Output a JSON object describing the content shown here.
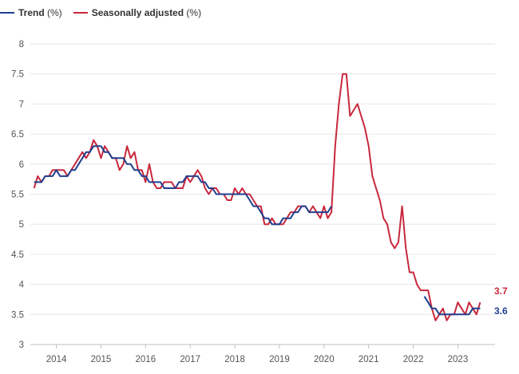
{
  "legend": [
    {
      "name": "Trend",
      "unit": "(%)",
      "color": "#1f3f8f"
    },
    {
      "name": "Seasonally adjusted",
      "unit": "(%)",
      "color": "#c8283c"
    }
  ],
  "chart_data": {
    "type": "line",
    "title": "",
    "xlabel": "",
    "ylabel": "",
    "ylim": [
      3,
      8
    ],
    "y_ticks": [
      3,
      3.5,
      4,
      4.5,
      5,
      5.5,
      6,
      6.5,
      7,
      7.5,
      8
    ],
    "y_tick_labels": [
      "3",
      "3.5",
      "4",
      "4.5",
      "5",
      "5.5",
      "6",
      "6.5",
      "7",
      "7.5",
      "8"
    ],
    "xlim": [
      "2013-06",
      "2023-11"
    ],
    "x_ticks": [
      "2014-01",
      "2015-01",
      "2016-01",
      "2017-01",
      "2018-01",
      "2019-01",
      "2020-01",
      "2021-01",
      "2022-01",
      "2023-01"
    ],
    "x_tick_labels": [
      "2014",
      "2015",
      "2016",
      "2017",
      "2018",
      "2019",
      "2020",
      "2021",
      "2022",
      "2023"
    ],
    "grid": "horizontal",
    "legend_position": "top-left",
    "series": [
      {
        "name": "Trend (%)",
        "color": "#1f3f8f",
        "segments": [
          [
            [
              "2013-07",
              5.7
            ],
            [
              "2013-08",
              5.7
            ],
            [
              "2013-09",
              5.7
            ],
            [
              "2013-10",
              5.8
            ],
            [
              "2013-11",
              5.8
            ],
            [
              "2013-12",
              5.8
            ],
            [
              "2014-01",
              5.9
            ],
            [
              "2014-02",
              5.8
            ],
            [
              "2014-03",
              5.8
            ],
            [
              "2014-04",
              5.8
            ],
            [
              "2014-05",
              5.9
            ],
            [
              "2014-06",
              5.9
            ],
            [
              "2014-07",
              6.0
            ],
            [
              "2014-08",
              6.1
            ],
            [
              "2014-09",
              6.2
            ],
            [
              "2014-10",
              6.2
            ],
            [
              "2014-11",
              6.3
            ],
            [
              "2014-12",
              6.3
            ],
            [
              "2015-01",
              6.3
            ],
            [
              "2015-02",
              6.2
            ],
            [
              "2015-03",
              6.2
            ],
            [
              "2015-04",
              6.1
            ],
            [
              "2015-05",
              6.1
            ],
            [
              "2015-06",
              6.1
            ],
            [
              "2015-07",
              6.1
            ],
            [
              "2015-08",
              6.0
            ],
            [
              "2015-09",
              6.0
            ],
            [
              "2015-10",
              5.9
            ],
            [
              "2015-11",
              5.9
            ],
            [
              "2015-12",
              5.8
            ],
            [
              "2016-01",
              5.8
            ],
            [
              "2016-02",
              5.7
            ],
            [
              "2016-03",
              5.7
            ],
            [
              "2016-04",
              5.7
            ],
            [
              "2016-05",
              5.7
            ],
            [
              "2016-06",
              5.6
            ],
            [
              "2016-07",
              5.6
            ],
            [
              "2016-08",
              5.6
            ],
            [
              "2016-09",
              5.6
            ],
            [
              "2016-10",
              5.7
            ],
            [
              "2016-11",
              5.7
            ],
            [
              "2016-12",
              5.8
            ],
            [
              "2017-01",
              5.8
            ],
            [
              "2017-02",
              5.8
            ],
            [
              "2017-03",
              5.8
            ],
            [
              "2017-04",
              5.7
            ],
            [
              "2017-05",
              5.7
            ],
            [
              "2017-06",
              5.6
            ],
            [
              "2017-07",
              5.6
            ],
            [
              "2017-08",
              5.5
            ],
            [
              "2017-09",
              5.5
            ],
            [
              "2017-10",
              5.5
            ],
            [
              "2017-11",
              5.5
            ],
            [
              "2017-12",
              5.5
            ],
            [
              "2018-01",
              5.5
            ],
            [
              "2018-02",
              5.5
            ],
            [
              "2018-03",
              5.5
            ],
            [
              "2018-04",
              5.5
            ],
            [
              "2018-05",
              5.4
            ],
            [
              "2018-06",
              5.3
            ],
            [
              "2018-07",
              5.3
            ],
            [
              "2018-08",
              5.2
            ],
            [
              "2018-09",
              5.1
            ],
            [
              "2018-10",
              5.1
            ],
            [
              "2018-11",
              5.0
            ],
            [
              "2018-12",
              5.0
            ],
            [
              "2019-01",
              5.0
            ],
            [
              "2019-02",
              5.1
            ],
            [
              "2019-03",
              5.1
            ],
            [
              "2019-04",
              5.1
            ],
            [
              "2019-05",
              5.2
            ],
            [
              "2019-06",
              5.2
            ],
            [
              "2019-07",
              5.3
            ],
            [
              "2019-08",
              5.3
            ],
            [
              "2019-09",
              5.2
            ],
            [
              "2019-10",
              5.2
            ],
            [
              "2019-11",
              5.2
            ],
            [
              "2019-12",
              5.2
            ],
            [
              "2020-01",
              5.2
            ],
            [
              "2020-02",
              5.2
            ],
            [
              "2020-03",
              5.3
            ]
          ],
          [
            [
              "2022-04",
              3.8
            ],
            [
              "2022-05",
              3.7
            ],
            [
              "2022-06",
              3.6
            ],
            [
              "2022-07",
              3.6
            ],
            [
              "2022-08",
              3.5
            ],
            [
              "2022-09",
              3.5
            ],
            [
              "2022-10",
              3.5
            ],
            [
              "2022-11",
              3.5
            ],
            [
              "2022-12",
              3.5
            ],
            [
              "2023-01",
              3.5
            ],
            [
              "2023-02",
              3.5
            ],
            [
              "2023-03",
              3.5
            ],
            [
              "2023-04",
              3.5
            ],
            [
              "2023-05",
              3.6
            ],
            [
              "2023-06",
              3.6
            ],
            [
              "2023-07",
              3.6
            ]
          ]
        ],
        "last_value_label": "3.6"
      },
      {
        "name": "Seasonally adjusted (%)",
        "color": "#c8283c",
        "segments": [
          [
            [
              "2013-07",
              5.6
            ],
            [
              "2013-08",
              5.8
            ],
            [
              "2013-09",
              5.7
            ],
            [
              "2013-10",
              5.8
            ],
            [
              "2013-11",
              5.8
            ],
            [
              "2013-12",
              5.9
            ],
            [
              "2014-01",
              5.9
            ],
            [
              "2014-02",
              5.9
            ],
            [
              "2014-03",
              5.9
            ],
            [
              "2014-04",
              5.8
            ],
            [
              "2014-05",
              5.9
            ],
            [
              "2014-06",
              6.0
            ],
            [
              "2014-07",
              6.1
            ],
            [
              "2014-08",
              6.2
            ],
            [
              "2014-09",
              6.1
            ],
            [
              "2014-10",
              6.2
            ],
            [
              "2014-11",
              6.4
            ],
            [
              "2014-12",
              6.3
            ],
            [
              "2015-01",
              6.1
            ],
            [
              "2015-02",
              6.3
            ],
            [
              "2015-03",
              6.2
            ],
            [
              "2015-04",
              6.1
            ],
            [
              "2015-05",
              6.1
            ],
            [
              "2015-06",
              5.9
            ],
            [
              "2015-07",
              6.0
            ],
            [
              "2015-08",
              6.3
            ],
            [
              "2015-09",
              6.1
            ],
            [
              "2015-10",
              6.2
            ],
            [
              "2015-11",
              5.9
            ],
            [
              "2015-12",
              5.9
            ],
            [
              "2016-01",
              5.7
            ],
            [
              "2016-02",
              6.0
            ],
            [
              "2016-03",
              5.7
            ],
            [
              "2016-04",
              5.6
            ],
            [
              "2016-05",
              5.6
            ],
            [
              "2016-06",
              5.7
            ],
            [
              "2016-07",
              5.7
            ],
            [
              "2016-08",
              5.7
            ],
            [
              "2016-09",
              5.6
            ],
            [
              "2016-10",
              5.6
            ],
            [
              "2016-11",
              5.6
            ],
            [
              "2016-12",
              5.8
            ],
            [
              "2017-01",
              5.7
            ],
            [
              "2017-02",
              5.8
            ],
            [
              "2017-03",
              5.9
            ],
            [
              "2017-04",
              5.8
            ],
            [
              "2017-05",
              5.6
            ],
            [
              "2017-06",
              5.5
            ],
            [
              "2017-07",
              5.6
            ],
            [
              "2017-08",
              5.6
            ],
            [
              "2017-09",
              5.5
            ],
            [
              "2017-10",
              5.5
            ],
            [
              "2017-11",
              5.4
            ],
            [
              "2017-12",
              5.4
            ],
            [
              "2018-01",
              5.6
            ],
            [
              "2018-02",
              5.5
            ],
            [
              "2018-03",
              5.6
            ],
            [
              "2018-04",
              5.5
            ],
            [
              "2018-05",
              5.5
            ],
            [
              "2018-06",
              5.4
            ],
            [
              "2018-07",
              5.3
            ],
            [
              "2018-08",
              5.3
            ],
            [
              "2018-09",
              5.0
            ],
            [
              "2018-10",
              5.0
            ],
            [
              "2018-11",
              5.1
            ],
            [
              "2018-12",
              5.0
            ],
            [
              "2019-01",
              5.0
            ],
            [
              "2019-02",
              5.0
            ],
            [
              "2019-03",
              5.1
            ],
            [
              "2019-04",
              5.2
            ],
            [
              "2019-05",
              5.2
            ],
            [
              "2019-06",
              5.3
            ],
            [
              "2019-07",
              5.3
            ],
            [
              "2019-08",
              5.3
            ],
            [
              "2019-09",
              5.2
            ],
            [
              "2019-10",
              5.3
            ],
            [
              "2019-11",
              5.2
            ],
            [
              "2019-12",
              5.1
            ],
            [
              "2020-01",
              5.3
            ],
            [
              "2020-02",
              5.1
            ],
            [
              "2020-03",
              5.2
            ],
            [
              "2020-04",
              6.3
            ],
            [
              "2020-05",
              7.0
            ],
            [
              "2020-06",
              7.5
            ],
            [
              "2020-07",
              7.5
            ],
            [
              "2020-08",
              6.8
            ],
            [
              "2020-09",
              6.9
            ],
            [
              "2020-10",
              7.0
            ],
            [
              "2020-11",
              6.8
            ],
            [
              "2020-12",
              6.6
            ],
            [
              "2021-01",
              6.3
            ],
            [
              "2021-02",
              5.8
            ],
            [
              "2021-03",
              5.6
            ],
            [
              "2021-04",
              5.4
            ],
            [
              "2021-05",
              5.1
            ],
            [
              "2021-06",
              5.0
            ],
            [
              "2021-07",
              4.7
            ],
            [
              "2021-08",
              4.6
            ],
            [
              "2021-09",
              4.7
            ],
            [
              "2021-10",
              5.3
            ],
            [
              "2021-11",
              4.6
            ],
            [
              "2021-12",
              4.2
            ],
            [
              "2022-01",
              4.2
            ],
            [
              "2022-02",
              4.0
            ],
            [
              "2022-03",
              3.9
            ],
            [
              "2022-04",
              3.9
            ],
            [
              "2022-05",
              3.9
            ],
            [
              "2022-06",
              3.6
            ],
            [
              "2022-07",
              3.4
            ],
            [
              "2022-08",
              3.5
            ],
            [
              "2022-09",
              3.6
            ],
            [
              "2022-10",
              3.4
            ],
            [
              "2022-11",
              3.5
            ],
            [
              "2022-12",
              3.5
            ],
            [
              "2023-01",
              3.7
            ],
            [
              "2023-02",
              3.6
            ],
            [
              "2023-03",
              3.5
            ],
            [
              "2023-04",
              3.7
            ],
            [
              "2023-05",
              3.6
            ],
            [
              "2023-06",
              3.5
            ],
            [
              "2023-07",
              3.7
            ]
          ]
        ],
        "last_value_label": "3.7"
      }
    ]
  }
}
